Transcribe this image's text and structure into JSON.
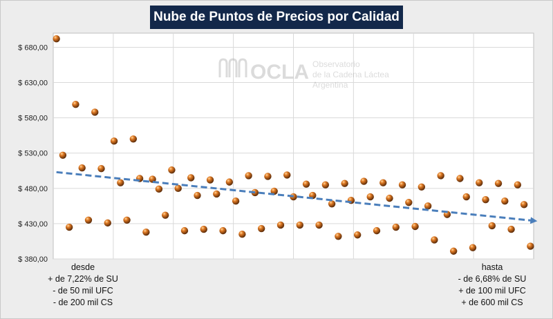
{
  "chart_data": {
    "type": "scatter",
    "title": "Nube de Puntos de Precios por Calidad",
    "ylim": [
      380,
      700
    ],
    "yticks": [
      "$ 380,00",
      "$ 430,00",
      "$ 480,00",
      "$ 530,00",
      "$ 580,00",
      "$ 630,00",
      "$ 680,00"
    ],
    "ytick_values": [
      380,
      430,
      480,
      530,
      580,
      630,
      680
    ],
    "xlim": [
      0.5,
      74.5
    ],
    "grid": true,
    "points": [
      {
        "x": 1,
        "y": 692
      },
      {
        "x": 2,
        "y": 527
      },
      {
        "x": 3,
        "y": 425
      },
      {
        "x": 4,
        "y": 599
      },
      {
        "x": 5,
        "y": 509
      },
      {
        "x": 6,
        "y": 435
      },
      {
        "x": 7,
        "y": 588
      },
      {
        "x": 8,
        "y": 508
      },
      {
        "x": 9,
        "y": 431
      },
      {
        "x": 10,
        "y": 547
      },
      {
        "x": 11,
        "y": 488
      },
      {
        "x": 12,
        "y": 435
      },
      {
        "x": 13,
        "y": 550
      },
      {
        "x": 14,
        "y": 494
      },
      {
        "x": 15,
        "y": 418
      },
      {
        "x": 16,
        "y": 493
      },
      {
        "x": 17,
        "y": 479
      },
      {
        "x": 18,
        "y": 442
      },
      {
        "x": 19,
        "y": 506
      },
      {
        "x": 20,
        "y": 480
      },
      {
        "x": 21,
        "y": 420
      },
      {
        "x": 22,
        "y": 495
      },
      {
        "x": 23,
        "y": 470
      },
      {
        "x": 24,
        "y": 422
      },
      {
        "x": 25,
        "y": 492
      },
      {
        "x": 26,
        "y": 472
      },
      {
        "x": 27,
        "y": 420
      },
      {
        "x": 28,
        "y": 489
      },
      {
        "x": 29,
        "y": 462
      },
      {
        "x": 30,
        "y": 415
      },
      {
        "x": 31,
        "y": 498
      },
      {
        "x": 32,
        "y": 474
      },
      {
        "x": 33,
        "y": 423
      },
      {
        "x": 34,
        "y": 497
      },
      {
        "x": 35,
        "y": 476
      },
      {
        "x": 36,
        "y": 428
      },
      {
        "x": 37,
        "y": 499
      },
      {
        "x": 38,
        "y": 468
      },
      {
        "x": 39,
        "y": 428
      },
      {
        "x": 40,
        "y": 486
      },
      {
        "x": 41,
        "y": 470
      },
      {
        "x": 42,
        "y": 428
      },
      {
        "x": 43,
        "y": 485
      },
      {
        "x": 44,
        "y": 458
      },
      {
        "x": 45,
        "y": 412
      },
      {
        "x": 46,
        "y": 487
      },
      {
        "x": 47,
        "y": 463
      },
      {
        "x": 48,
        "y": 414
      },
      {
        "x": 49,
        "y": 490
      },
      {
        "x": 50,
        "y": 468
      },
      {
        "x": 51,
        "y": 420
      },
      {
        "x": 52,
        "y": 488
      },
      {
        "x": 53,
        "y": 466
      },
      {
        "x": 54,
        "y": 425
      },
      {
        "x": 55,
        "y": 485
      },
      {
        "x": 56,
        "y": 460
      },
      {
        "x": 57,
        "y": 426
      },
      {
        "x": 58,
        "y": 482
      },
      {
        "x": 59,
        "y": 455
      },
      {
        "x": 60,
        "y": 407
      },
      {
        "x": 61,
        "y": 498
      },
      {
        "x": 62,
        "y": 443
      },
      {
        "x": 63,
        "y": 391
      },
      {
        "x": 64,
        "y": 494
      },
      {
        "x": 65,
        "y": 468
      },
      {
        "x": 66,
        "y": 396
      },
      {
        "x": 67,
        "y": 488
      },
      {
        "x": 68,
        "y": 464
      },
      {
        "x": 69,
        "y": 427
      },
      {
        "x": 70,
        "y": 487
      },
      {
        "x": 71,
        "y": 462
      },
      {
        "x": 72,
        "y": 422
      },
      {
        "x": 73,
        "y": 485
      },
      {
        "x": 74,
        "y": 457
      },
      {
        "x": 75,
        "y": 398
      }
    ],
    "trendline": {
      "x_start": 1,
      "y_start": 503,
      "x_end": 75,
      "y_end": 434,
      "style": "dashed",
      "color": "#4a7ebb"
    },
    "marker_color": "#c8661c"
  },
  "watermark": {
    "logo_text": "OCLA",
    "line1": "Observatorio",
    "line2": "de la Cadena Láctea",
    "line3": "Argentina"
  },
  "annotations": {
    "left": [
      "desde",
      "+ de 7,22% de SU",
      "- de 50 mil UFC",
      "- de 200 mil CS"
    ],
    "right": [
      "hasta",
      "- de 6,68% de SU",
      "+ de 100 mil UFC",
      "+ de 600 mil CS"
    ]
  }
}
